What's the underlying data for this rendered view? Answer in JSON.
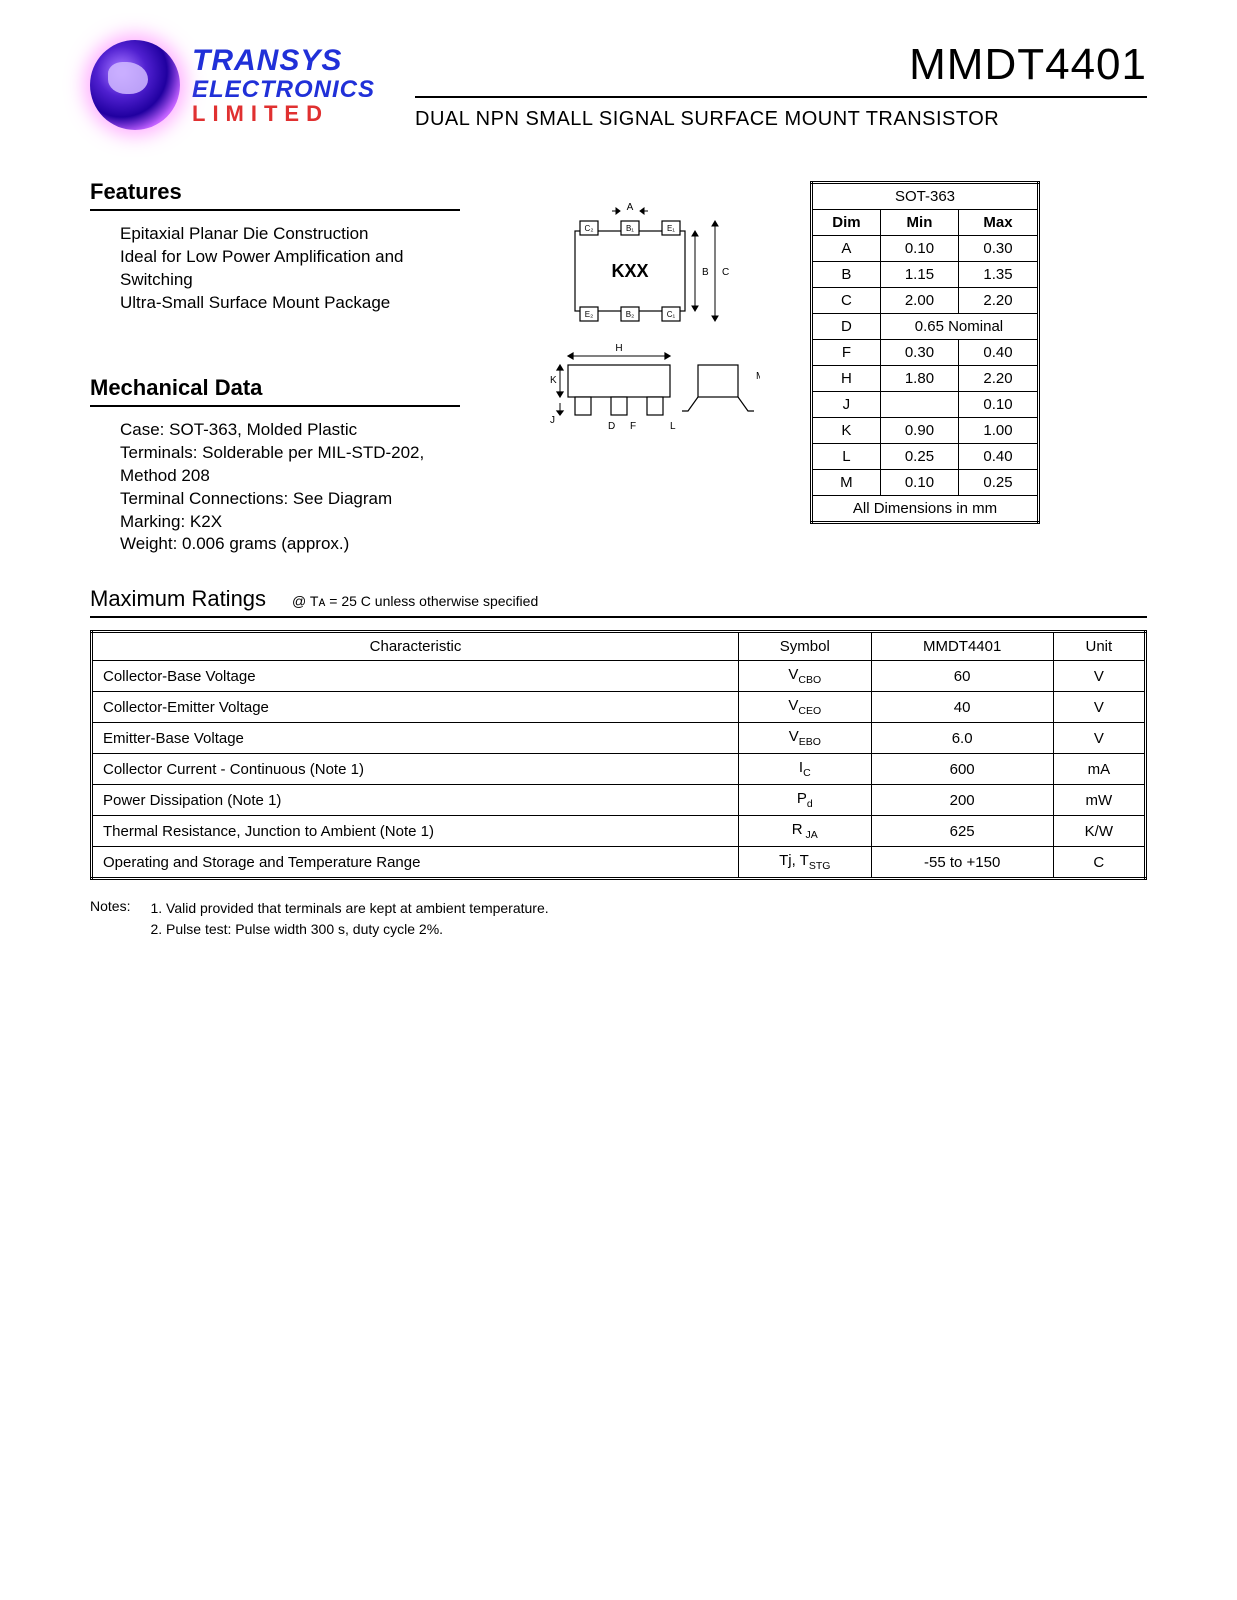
{
  "logo": {
    "line1": "TRANSYS",
    "line2": "ELECTRONICS",
    "line3": "LIMITED"
  },
  "header": {
    "part_number": "MMDT4401",
    "subtitle": "DUAL NPN SMALL SIGNAL SURFACE MOUNT TRANSISTOR"
  },
  "features": {
    "heading": "Features",
    "items": [
      "Epitaxial Planar Die Construction",
      "Ideal for Low Power Amplification and Switching",
      "Ultra-Small Surface Mount Package"
    ]
  },
  "mechanical": {
    "heading": "Mechanical Data",
    "items": [
      "Case: SOT-363, Molded Plastic",
      "Terminals: Solderable per MIL-STD-202, Method 208",
      "Terminal Connections: See Diagram",
      "Marking: K2X",
      "Weight: 0.006 grams (approx.)"
    ]
  },
  "package_diagram": {
    "label": "KXX",
    "pins_top": [
      "C₂",
      "B₁",
      "E₁"
    ],
    "pins_bottom": [
      "E₂",
      "B₂",
      "C₁"
    ],
    "dim_letters": [
      "A",
      "B",
      "C",
      "D",
      "F",
      "H",
      "J",
      "K",
      "L",
      "M"
    ]
  },
  "dim_table": {
    "title": "SOT-363",
    "headers": [
      "Dim",
      "Min",
      "Max"
    ],
    "rows": [
      {
        "dim": "A",
        "min": "0.10",
        "max": "0.30"
      },
      {
        "dim": "B",
        "min": "1.15",
        "max": "1.35"
      },
      {
        "dim": "C",
        "min": "2.00",
        "max": "2.20"
      },
      {
        "dim": "D",
        "min": "0.65 Nominal",
        "max": "",
        "span": true
      },
      {
        "dim": "F",
        "min": "0.30",
        "max": "0.40"
      },
      {
        "dim": "H",
        "min": "1.80",
        "max": "2.20"
      },
      {
        "dim": "J",
        "min": "",
        "max": "0.10"
      },
      {
        "dim": "K",
        "min": "0.90",
        "max": "1.00"
      },
      {
        "dim": "L",
        "min": "0.25",
        "max": "0.40"
      },
      {
        "dim": "M",
        "min": "0.10",
        "max": "0.25"
      }
    ],
    "footer": "All Dimensions in mm"
  },
  "ratings": {
    "heading": "Maximum Ratings",
    "condition": "@ Tᴀ = 25 C unless otherwise specified",
    "headers": [
      "Characteristic",
      "Symbol",
      "MMDT4401",
      "Unit"
    ],
    "rows": [
      {
        "c": "Collector-Base Voltage",
        "s": "V",
        "sub": "CBO",
        "v": "60",
        "u": "V"
      },
      {
        "c": "Collector-Emitter Voltage",
        "s": "V",
        "sub": "CEO",
        "v": "40",
        "u": "V"
      },
      {
        "c": "Emitter-Base Voltage",
        "s": "V",
        "sub": "EBO",
        "v": "6.0",
        "u": "V"
      },
      {
        "c": "Collector Current - Continuous (Note 1)",
        "s": "I",
        "sub": "C",
        "v": "600",
        "u": "mA"
      },
      {
        "c": "Power Dissipation (Note 1)",
        "s": "P",
        "sub": "d",
        "v": "200",
        "u": "mW"
      },
      {
        "c": "Thermal Resistance, Junction to Ambient (Note 1)",
        "s": "R",
        "sub": " JA",
        "v": "625",
        "u": "K/W"
      },
      {
        "c": "Operating and Storage and Temperature Range",
        "s": "Tj, T",
        "sub": "STG",
        "v": "-55 to +150",
        "u": "C"
      }
    ]
  },
  "notes": {
    "label": "Notes:",
    "items": [
      "1.  Valid provided that terminals are kept at ambient temperature.",
      "2.  Pulse test:  Pulse width   300  s, duty cycle   2%."
    ]
  }
}
